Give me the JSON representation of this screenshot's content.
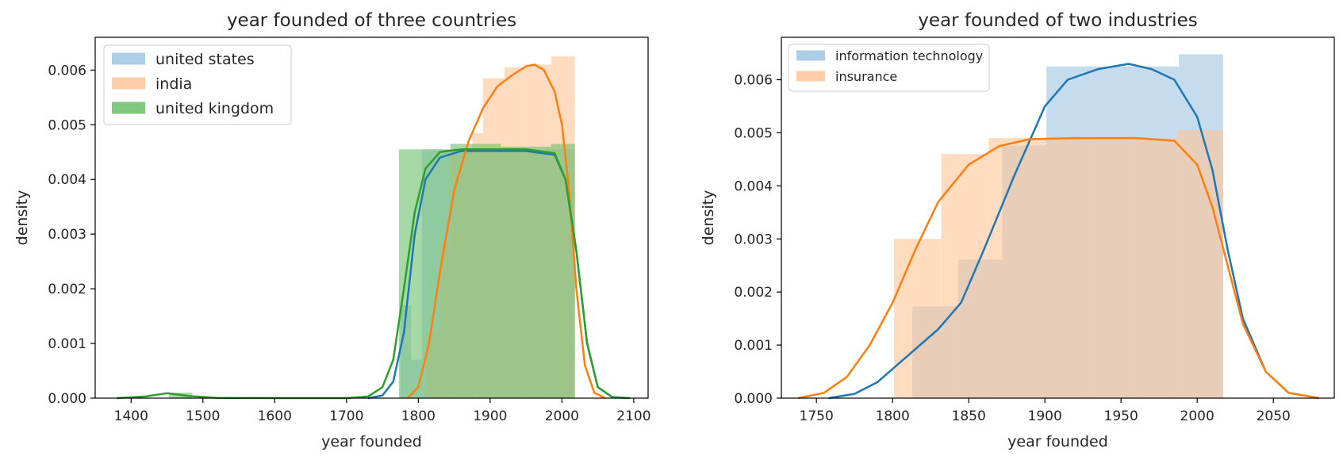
{
  "chart_data": [
    {
      "type": "histogram+kde",
      "title": "year founded of three countries",
      "xlabel": "year founded",
      "ylabel": "density",
      "xlim": [
        1350,
        2120
      ],
      "ylim": [
        0,
        0.0066
      ],
      "xticks": [
        1400,
        1500,
        1600,
        1700,
        1800,
        1900,
        2000,
        2100
      ],
      "yticks": [
        0.0,
        0.001,
        0.002,
        0.003,
        0.004,
        0.005,
        0.006
      ],
      "ytick_labels": [
        "0.000",
        "0.001",
        "0.002",
        "0.003",
        "0.004",
        "0.005",
        "0.006"
      ],
      "legend_position": "top-left",
      "series": [
        {
          "name": "united states",
          "hist_color": "#9fc5e3",
          "line_color": "#1f77b4",
          "bins": [
            {
              "x0": 1775,
              "x1": 1790,
              "y": 0.0017
            },
            {
              "x0": 1790,
              "x1": 1805,
              "y": 0.0007
            },
            {
              "x0": 1805,
              "x1": 1835,
              "y": 0.00455
            },
            {
              "x0": 1835,
              "x1": 1885,
              "y": 0.00455
            },
            {
              "x0": 1885,
              "x1": 1935,
              "y": 0.00455
            },
            {
              "x0": 1935,
              "x1": 1985,
              "y": 0.00455
            },
            {
              "x0": 1985,
              "x1": 2018,
              "y": 0.00455
            }
          ],
          "kde": [
            [
              1730,
              0
            ],
            [
              1750,
              5e-05
            ],
            [
              1765,
              0.0003
            ],
            [
              1780,
              0.0012
            ],
            [
              1795,
              0.003
            ],
            [
              1810,
              0.004
            ],
            [
              1830,
              0.0044
            ],
            [
              1860,
              0.00452
            ],
            [
              1900,
              0.00452
            ],
            [
              1950,
              0.00452
            ],
            [
              1990,
              0.00445
            ],
            [
              2005,
              0.004
            ],
            [
              2020,
              0.0027
            ],
            [
              2035,
              0.001
            ],
            [
              2050,
              0.0002
            ],
            [
              2070,
              2e-05
            ],
            [
              2090,
              0
            ]
          ]
        },
        {
          "name": "india",
          "hist_color": "#ffc596",
          "line_color": "#ff7f0e",
          "bins": [
            {
              "x0": 1810,
              "x1": 1830,
              "y": 0.0012
            },
            {
              "x0": 1830,
              "x1": 1845,
              "y": 0.00285
            },
            {
              "x0": 1845,
              "x1": 1860,
              "y": 0.00445
            },
            {
              "x0": 1860,
              "x1": 1875,
              "y": 0.0045
            },
            {
              "x0": 1875,
              "x1": 1890,
              "y": 0.00485
            },
            {
              "x0": 1890,
              "x1": 1920,
              "y": 0.00585
            },
            {
              "x0": 1920,
              "x1": 1950,
              "y": 0.00605
            },
            {
              "x0": 1950,
              "x1": 1985,
              "y": 0.0061
            },
            {
              "x0": 1985,
              "x1": 2018,
              "y": 0.00625
            }
          ],
          "kde": [
            [
              1785,
              0
            ],
            [
              1800,
              0.0002
            ],
            [
              1815,
              0.001
            ],
            [
              1830,
              0.0023
            ],
            [
              1850,
              0.0038
            ],
            [
              1870,
              0.0047
            ],
            [
              1890,
              0.0053
            ],
            [
              1910,
              0.0057
            ],
            [
              1930,
              0.0059
            ],
            [
              1950,
              0.00607
            ],
            [
              1962,
              0.0061
            ],
            [
              1975,
              0.006
            ],
            [
              1990,
              0.0056
            ],
            [
              2000,
              0.005
            ],
            [
              2010,
              0.0038
            ],
            [
              2020,
              0.002
            ],
            [
              2032,
              0.0006
            ],
            [
              2045,
              0.0001
            ],
            [
              2060,
              0
            ]
          ]
        },
        {
          "name": "united kingdom",
          "hist_color": "#6abf6a",
          "line_color": "#2ca02c",
          "bins": [
            {
              "x0": 1453,
              "x1": 1485,
              "y": 0.0001
            },
            {
              "x0": 1773,
              "x1": 1810,
              "y": 0.00455
            },
            {
              "x0": 1810,
              "x1": 1845,
              "y": 0.00455
            },
            {
              "x0": 1845,
              "x1": 1880,
              "y": 0.00465
            },
            {
              "x0": 1880,
              "x1": 1915,
              "y": 0.00465
            },
            {
              "x0": 1915,
              "x1": 1945,
              "y": 0.0046
            },
            {
              "x0": 1945,
              "x1": 1985,
              "y": 0.0046
            },
            {
              "x0": 1985,
              "x1": 2018,
              "y": 0.00465
            }
          ],
          "kde": [
            [
              1380,
              0
            ],
            [
              1420,
              3e-05
            ],
            [
              1450,
              9e-05
            ],
            [
              1480,
              4e-05
            ],
            [
              1520,
              5e-06
            ],
            [
              1600,
              0
            ],
            [
              1700,
              0
            ],
            [
              1730,
              3e-05
            ],
            [
              1750,
              0.0002
            ],
            [
              1765,
              0.0007
            ],
            [
              1780,
              0.002
            ],
            [
              1795,
              0.0034
            ],
            [
              1810,
              0.0042
            ],
            [
              1830,
              0.0045
            ],
            [
              1860,
              0.00455
            ],
            [
              1900,
              0.00455
            ],
            [
              1950,
              0.00455
            ],
            [
              1990,
              0.00448
            ],
            [
              2005,
              0.004
            ],
            [
              2020,
              0.0027
            ],
            [
              2035,
              0.001
            ],
            [
              2050,
              0.0002
            ],
            [
              2070,
              2e-05
            ],
            [
              2095,
              0
            ]
          ]
        }
      ]
    },
    {
      "type": "histogram+kde",
      "title": "year founded of two industries",
      "xlabel": "year founded",
      "ylabel": "density",
      "xlim": [
        1727,
        2090
      ],
      "ylim": [
        0,
        0.0068
      ],
      "xticks": [
        1750,
        1800,
        1850,
        1900,
        1950,
        2000,
        2050
      ],
      "yticks": [
        0.0,
        0.001,
        0.002,
        0.003,
        0.004,
        0.005,
        0.006
      ],
      "ytick_labels": [
        "0.000",
        "0.001",
        "0.002",
        "0.003",
        "0.004",
        "0.005",
        "0.006"
      ],
      "legend_position": "top-left",
      "series": [
        {
          "name": "information technology",
          "hist_color": "#9fc5e3",
          "line_color": "#1f77b4",
          "bins": [
            {
              "x0": 1813,
              "x1": 1843,
              "y": 0.00173
            },
            {
              "x0": 1843,
              "x1": 1872,
              "y": 0.00261
            },
            {
              "x0": 1872,
              "x1": 1901,
              "y": 0.00476
            },
            {
              "x0": 1901,
              "x1": 1930,
              "y": 0.00625
            },
            {
              "x0": 1930,
              "x1": 1959,
              "y": 0.00625
            },
            {
              "x0": 1959,
              "x1": 1988,
              "y": 0.00625
            },
            {
              "x0": 1988,
              "x1": 2017,
              "y": 0.00648
            }
          ],
          "kde": [
            [
              1758,
              0
            ],
            [
              1775,
              8e-05
            ],
            [
              1790,
              0.0003
            ],
            [
              1810,
              0.0008
            ],
            [
              1830,
              0.0013
            ],
            [
              1845,
              0.0018
            ],
            [
              1860,
              0.0028
            ],
            [
              1880,
              0.0042
            ],
            [
              1900,
              0.0055
            ],
            [
              1915,
              0.006
            ],
            [
              1935,
              0.0062
            ],
            [
              1955,
              0.0063
            ],
            [
              1970,
              0.0062
            ],
            [
              1985,
              0.006
            ],
            [
              2000,
              0.0053
            ],
            [
              2010,
              0.0043
            ],
            [
              2020,
              0.0028
            ],
            [
              2030,
              0.0015
            ],
            [
              2045,
              0.0005
            ],
            [
              2060,
              0.0001
            ],
            [
              2080,
              0
            ]
          ]
        },
        {
          "name": "insurance",
          "hist_color": "#ffc596",
          "line_color": "#ff7f0e",
          "bins": [
            {
              "x0": 1801,
              "x1": 1832,
              "y": 0.003
            },
            {
              "x0": 1832,
              "x1": 1863,
              "y": 0.0046
            },
            {
              "x0": 1863,
              "x1": 1894,
              "y": 0.0049
            },
            {
              "x0": 1894,
              "x1": 1925,
              "y": 0.0049
            },
            {
              "x0": 1925,
              "x1": 1956,
              "y": 0.0049
            },
            {
              "x0": 1956,
              "x1": 1987,
              "y": 0.0049
            },
            {
              "x0": 1987,
              "x1": 2017,
              "y": 0.00505
            }
          ],
          "kde": [
            [
              1738,
              0
            ],
            [
              1755,
              0.0001
            ],
            [
              1770,
              0.0004
            ],
            [
              1785,
              0.001
            ],
            [
              1800,
              0.0018
            ],
            [
              1815,
              0.0028
            ],
            [
              1830,
              0.0037
            ],
            [
              1850,
              0.0044
            ],
            [
              1870,
              0.00475
            ],
            [
              1890,
              0.00488
            ],
            [
              1920,
              0.0049
            ],
            [
              1960,
              0.0049
            ],
            [
              1985,
              0.00485
            ],
            [
              2000,
              0.0044
            ],
            [
              2010,
              0.0036
            ],
            [
              2020,
              0.0025
            ],
            [
              2030,
              0.0014
            ],
            [
              2045,
              0.0005
            ],
            [
              2060,
              0.0001
            ],
            [
              2080,
              0
            ]
          ]
        }
      ]
    }
  ]
}
